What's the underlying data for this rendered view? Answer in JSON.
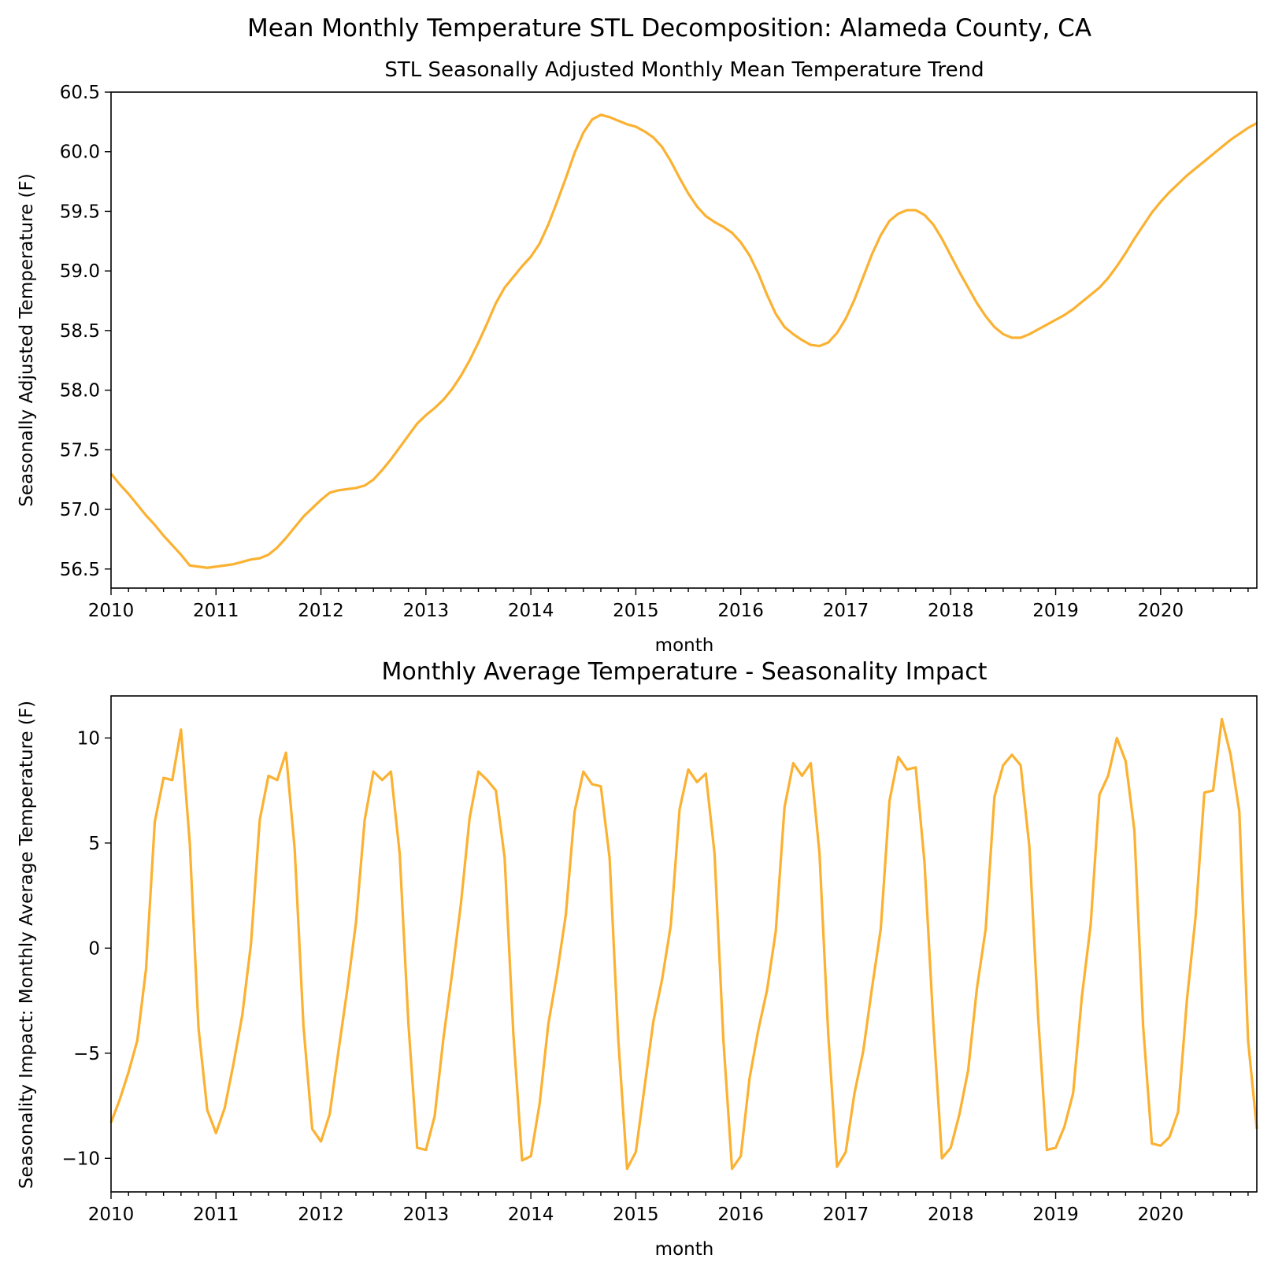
{
  "figure": {
    "suptitle": "Mean Monthly Temperature STL Decomposition: Alameda County, CA",
    "line_color": "#fbb131"
  },
  "chart_data": [
    {
      "type": "line",
      "title": "STL Seasonally Adjusted Monthly Mean Temperature Trend",
      "xlabel": "month",
      "ylabel": "Seasonally Adjusted Temperature (F)",
      "x_start": "2010-01",
      "x_end": "2020-12",
      "x_ticks": [
        "2010",
        "2011",
        "2012",
        "2013",
        "2014",
        "2015",
        "2016",
        "2017",
        "2018",
        "2019",
        "2020"
      ],
      "y_ticks": [
        "56.5",
        "57.0",
        "57.5",
        "58.0",
        "58.5",
        "59.0",
        "59.5",
        "60.0",
        "60.5"
      ],
      "ylim": [
        56.34,
        60.5
      ],
      "grid": false,
      "series": [
        {
          "values": [
            57.3,
            57.21,
            57.13,
            57.04,
            56.95,
            56.87,
            56.78,
            56.7,
            56.62,
            56.53,
            56.52,
            56.51,
            56.52,
            56.53,
            56.54,
            56.56,
            56.58,
            56.59,
            56.62,
            56.68,
            56.76,
            56.85,
            56.94,
            57.01,
            57.08,
            57.14,
            57.16,
            57.17,
            57.18,
            57.2,
            57.25,
            57.33,
            57.42,
            57.52,
            57.62,
            57.72,
            57.79,
            57.85,
            57.92,
            58.01,
            58.12,
            58.25,
            58.4,
            58.56,
            58.73,
            58.86,
            58.95,
            59.04,
            59.12,
            59.23,
            59.39,
            59.58,
            59.78,
            59.99,
            60.16,
            60.27,
            60.31,
            60.29,
            60.26,
            60.23,
            60.21,
            60.17,
            60.12,
            60.04,
            59.92,
            59.78,
            59.65,
            59.54,
            59.46,
            59.41,
            59.37,
            59.32,
            59.24,
            59.13,
            58.98,
            58.8,
            58.64,
            58.53,
            58.47,
            58.42,
            58.38,
            58.37,
            58.4,
            58.48,
            58.6,
            58.76,
            58.95,
            59.14,
            59.3,
            59.42,
            59.48,
            59.51,
            59.51,
            59.47,
            59.39,
            59.27,
            59.13,
            58.99,
            58.86,
            58.73,
            58.62,
            58.53,
            58.47,
            58.44,
            58.44,
            58.47,
            58.51,
            58.55,
            58.59,
            58.63,
            58.68,
            58.74,
            58.8,
            58.86,
            58.94,
            59.04,
            59.15,
            59.27,
            59.38,
            59.49,
            59.58,
            59.66,
            59.73,
            59.8,
            59.86,
            59.92,
            59.98,
            60.04,
            60.1,
            60.15,
            60.2,
            60.24
          ]
        }
      ]
    },
    {
      "type": "line",
      "title": "Monthly Average Temperature - Seasonality Impact",
      "xlabel": "month",
      "ylabel": "Seasonality Impact: Monthly Average Temperature (F)",
      "x_start": "2010-01",
      "x_end": "2020-12",
      "x_ticks": [
        "2010",
        "2011",
        "2012",
        "2013",
        "2014",
        "2015",
        "2016",
        "2017",
        "2018",
        "2019",
        "2020"
      ],
      "y_ticks": [
        "−10",
        "−5",
        "0",
        "5",
        "10"
      ],
      "y_tick_values": [
        -10,
        -5,
        0,
        5,
        10
      ],
      "ylim": [
        -11.6,
        12.0
      ],
      "grid": false,
      "series": [
        {
          "values": [
            -8.3,
            -7.2,
            -5.9,
            -4.4,
            -1.0,
            6.0,
            8.1,
            8.0,
            10.4,
            5.0,
            -3.8,
            -7.7,
            -8.8,
            -7.6,
            -5.5,
            -3.2,
            0.2,
            6.1,
            8.2,
            8.0,
            9.3,
            4.7,
            -3.7,
            -8.6,
            -9.2,
            -7.9,
            -4.9,
            -2.0,
            1.2,
            6.1,
            8.4,
            8.0,
            8.4,
            4.5,
            -3.6,
            -9.5,
            -9.6,
            -8.0,
            -4.3,
            -1.2,
            2.1,
            6.2,
            8.4,
            8.0,
            7.5,
            4.3,
            -4.1,
            -10.1,
            -9.9,
            -7.4,
            -3.6,
            -1.2,
            1.6,
            6.5,
            8.4,
            7.8,
            7.7,
            4.3,
            -4.4,
            -10.5,
            -9.7,
            -6.6,
            -3.5,
            -1.5,
            1.1,
            6.6,
            8.5,
            7.9,
            8.3,
            4.5,
            -4.3,
            -10.5,
            -9.9,
            -6.2,
            -3.9,
            -2.0,
            0.8,
            6.7,
            8.8,
            8.2,
            8.8,
            4.5,
            -4.1,
            -10.4,
            -9.7,
            -6.9,
            -4.9,
            -1.9,
            0.9,
            7.0,
            9.1,
            8.5,
            8.6,
            4.1,
            -3.5,
            -10.0,
            -9.5,
            -7.9,
            -5.8,
            -1.9,
            0.9,
            7.2,
            8.7,
            9.2,
            8.7,
            4.8,
            -3.3,
            -9.6,
            -9.5,
            -8.5,
            -6.9,
            -2.3,
            1.1,
            7.3,
            8.2,
            10.0,
            8.9,
            5.6,
            -3.7,
            -9.3,
            -9.4,
            -9.0,
            -7.8,
            -2.5,
            1.5,
            7.4,
            7.5,
            10.9,
            9.2,
            6.5,
            -4.4,
            -8.6
          ]
        }
      ]
    }
  ]
}
